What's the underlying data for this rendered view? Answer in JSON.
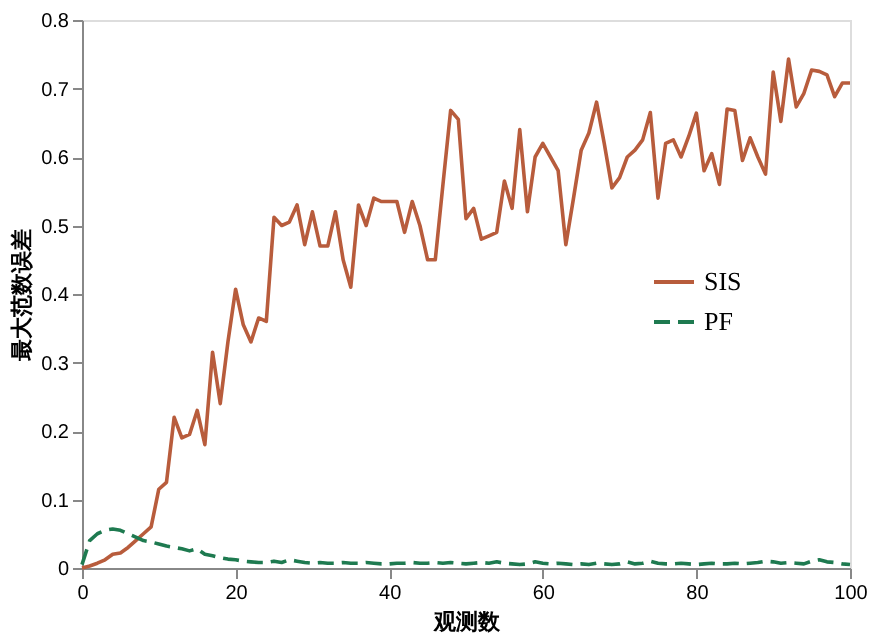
{
  "chart_data": {
    "type": "line",
    "xlabel": "观测数",
    "ylabel": "最大范数误差",
    "x": [
      0,
      1,
      2,
      3,
      4,
      5,
      6,
      7,
      8,
      9,
      10,
      11,
      12,
      13,
      14,
      15,
      16,
      17,
      18,
      19,
      20,
      21,
      22,
      23,
      24,
      25,
      26,
      27,
      28,
      29,
      30,
      31,
      32,
      33,
      34,
      35,
      36,
      37,
      38,
      39,
      40,
      41,
      42,
      43,
      44,
      45,
      46,
      47,
      48,
      49,
      50,
      51,
      52,
      53,
      54,
      55,
      56,
      57,
      58,
      59,
      60,
      61,
      62,
      63,
      64,
      65,
      66,
      67,
      68,
      69,
      70,
      71,
      72,
      73,
      74,
      75,
      76,
      77,
      78,
      79,
      80,
      81,
      82,
      83,
      84,
      85,
      86,
      87,
      88,
      89,
      90,
      91,
      92,
      93,
      94,
      95,
      96,
      97,
      98,
      99,
      100
    ],
    "series": [
      {
        "name": "SIS",
        "color": "#b85c3c",
        "line_style": "solid",
        "values": [
          0,
          0.003,
          0.007,
          0.012,
          0.02,
          0.022,
          0.03,
          0.04,
          0.05,
          0.06,
          0.115,
          0.125,
          0.22,
          0.19,
          0.195,
          0.23,
          0.18,
          0.315,
          0.24,
          0.33,
          0.407,
          0.355,
          0.33,
          0.365,
          0.36,
          0.512,
          0.5,
          0.505,
          0.53,
          0.472,
          0.52,
          0.47,
          0.47,
          0.52,
          0.45,
          0.41,
          0.53,
          0.5,
          0.54,
          0.535,
          0.535,
          0.535,
          0.49,
          0.535,
          0.5,
          0.45,
          0.45,
          0.56,
          0.668,
          0.655,
          0.51,
          0.525,
          0.48,
          0.485,
          0.49,
          0.565,
          0.525,
          0.64,
          0.52,
          0.6,
          0.62,
          0.6,
          0.58,
          0.472,
          0.54,
          0.61,
          0.635,
          0.68,
          0.62,
          0.555,
          0.57,
          0.6,
          0.61,
          0.625,
          0.665,
          0.54,
          0.62,
          0.625,
          0.6,
          0.63,
          0.664,
          0.58,
          0.605,
          0.56,
          0.67,
          0.668,
          0.595,
          0.628,
          0.6,
          0.575,
          0.724,
          0.652,
          0.743,
          0.673,
          0.693,
          0.727,
          0.725,
          0.72,
          0.688,
          0.708,
          0.708
        ]
      },
      {
        "name": "PF",
        "color": "#1e7a50",
        "line_style": "dashed",
        "values": [
          0.005,
          0.04,
          0.05,
          0.055,
          0.057,
          0.055,
          0.05,
          0.045,
          0.04,
          0.038,
          0.035,
          0.032,
          0.03,
          0.028,
          0.025,
          0.028,
          0.02,
          0.018,
          0.015,
          0.013,
          0.012,
          0.01,
          0.009,
          0.008,
          0.008,
          0.01,
          0.008,
          0.012,
          0.01,
          0.008,
          0.007,
          0.008,
          0.007,
          0.007,
          0.008,
          0.007,
          0.007,
          0.008,
          0.007,
          0.006,
          0.006,
          0.007,
          0.007,
          0.008,
          0.007,
          0.007,
          0.008,
          0.007,
          0.008,
          0.007,
          0.006,
          0.007,
          0.008,
          0.007,
          0.009,
          0.007,
          0.006,
          0.005,
          0.006,
          0.009,
          0.007,
          0.006,
          0.007,
          0.006,
          0.005,
          0.006,
          0.005,
          0.007,
          0.006,
          0.005,
          0.006,
          0.009,
          0.006,
          0.007,
          0.01,
          0.007,
          0.006,
          0.006,
          0.007,
          0.006,
          0.005,
          0.006,
          0.007,
          0.006,
          0.006,
          0.007,
          0.006,
          0.007,
          0.008,
          0.01,
          0.009,
          0.007,
          0.008,
          0.007,
          0.006,
          0.01,
          0.012,
          0.009,
          0.008,
          0.006,
          0.005
        ]
      }
    ],
    "xlim": [
      0,
      100
    ],
    "xticks": [
      0,
      20,
      40,
      60,
      80,
      100
    ],
    "ylim": [
      0,
      0.8
    ],
    "yticks": [
      0,
      0.1,
      0.2,
      0.3,
      0.4,
      0.5,
      0.6,
      0.7,
      0.8
    ],
    "grid": false,
    "legend": "right",
    "marker": "none"
  }
}
